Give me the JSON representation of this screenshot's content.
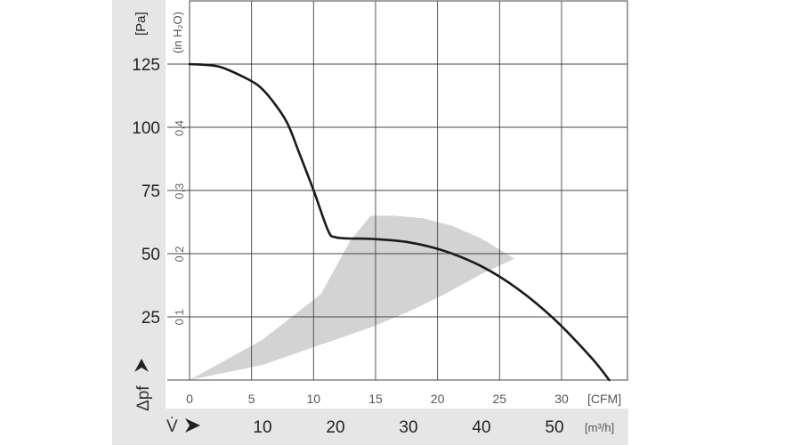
{
  "chart_data": {
    "type": "line",
    "y_axes": {
      "left": {
        "unit": "[Pa]",
        "ticks": [
          "125",
          "100",
          "75",
          "50",
          "25"
        ],
        "ticks_value": [
          125,
          100,
          75,
          50,
          25
        ],
        "range": [
          0,
          150
        ]
      },
      "left_inner": {
        "unit": "(in H₂O)",
        "ticks": [
          "0,4",
          "0,3",
          "0,2",
          "0,1"
        ],
        "ticks_value": [
          0.4,
          0.3,
          0.2,
          0.1
        ]
      }
    },
    "x_axes": {
      "cfm": {
        "unit": "[CFM]",
        "ticks": [
          "0",
          "5",
          "10",
          "15",
          "20",
          "25",
          "30"
        ],
        "ticks_value": [
          0,
          5,
          10,
          15,
          20,
          25,
          30
        ],
        "range": [
          0,
          35
        ]
      },
      "m3h": {
        "unit": "[m³/h]",
        "ticks": [
          "10",
          "20",
          "30",
          "40",
          "50"
        ],
        "ticks_value": [
          10,
          20,
          30,
          40,
          50
        ]
      }
    },
    "y_label": "Δpf",
    "x_label": "V̇",
    "grid": true,
    "series": [
      {
        "values_x_m3h": [
          0,
          4,
          8,
          10,
          12,
          13.5,
          15,
          17,
          19,
          20,
          22,
          25,
          30,
          35,
          40,
          45,
          50,
          55,
          57.5
        ],
        "values_y_pa": [
          125,
          124,
          119,
          115,
          108,
          101,
          90,
          75,
          59,
          56.5,
          56,
          55.8,
          54.5,
          51,
          45,
          36,
          24,
          9,
          0
        ]
      }
    ],
    "shaded_region": {
      "upper_m3h": [
        0,
        10,
        18,
        22,
        24.8,
        28,
        32,
        36,
        40,
        44.5
      ],
      "upper_pa": [
        0,
        16,
        34,
        55,
        65,
        65,
        64,
        61,
        56,
        48
      ],
      "lower_m3h": [
        44.5,
        40,
        35,
        30,
        25,
        20,
        15,
        10,
        5,
        0
      ],
      "lower_pa": [
        48,
        42,
        34,
        27,
        21,
        16,
        11,
        6,
        3,
        0
      ]
    }
  }
}
